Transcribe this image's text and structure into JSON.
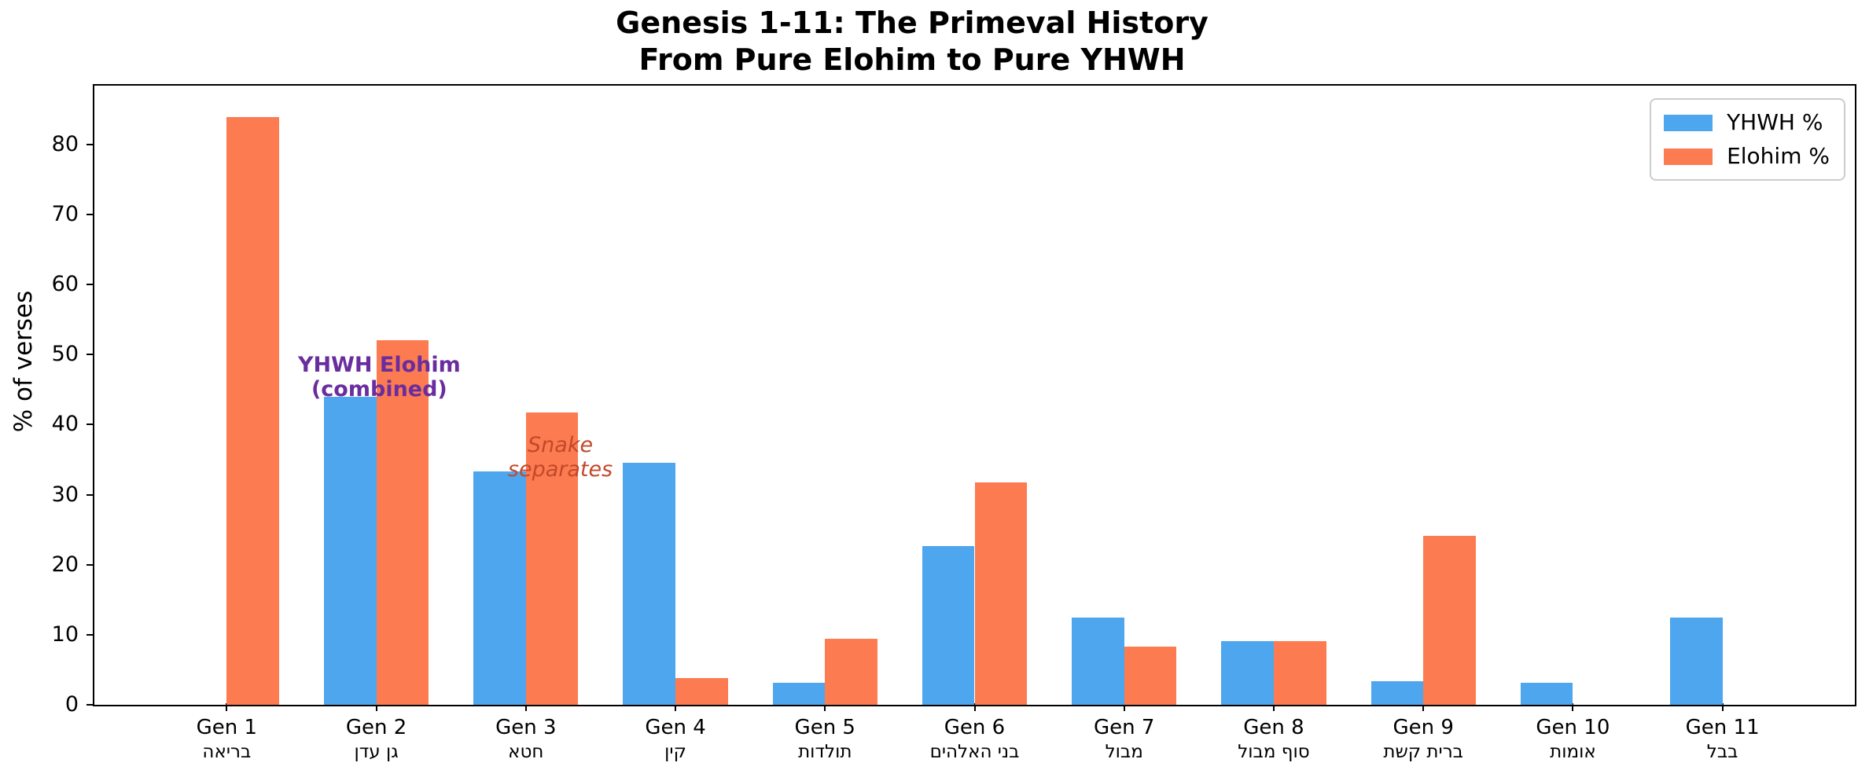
{
  "chart_data": {
    "type": "bar",
    "title": "Genesis 1-11: The Primeval History\nFrom Pure Elohim to Pure YHWH",
    "title_line1": "Genesis 1-11: The Primeval History",
    "title_line2": "From Pure Elohim to Pure YHWH",
    "xlabel": "",
    "ylabel": "% of verses",
    "ylim": [
      0,
      88.4
    ],
    "yticks": [
      0,
      10,
      20,
      30,
      40,
      50,
      60,
      70,
      80
    ],
    "grid": false,
    "legend_position": "upper right",
    "categories": [
      "Gen 1",
      "Gen 2",
      "Gen 3",
      "Gen 4",
      "Gen 5",
      "Gen 6",
      "Gen 7",
      "Gen 8",
      "Gen 9",
      "Gen 10",
      "Gen 11"
    ],
    "categories_hebrew": [
      "בריאה",
      "גן עדן",
      "חטא",
      "קין",
      "תולדות",
      "בני האלהים",
      "מבול",
      "סוף מבול",
      "ברית קשת",
      "אומות",
      "בבל"
    ],
    "series": [
      {
        "name": "YHWH %",
        "color": "#4DA6EE",
        "values": [
          0,
          44.0,
          33.3,
          34.6,
          3.1,
          22.7,
          12.5,
          9.1,
          3.4,
          3.1,
          12.5
        ]
      },
      {
        "name": "Elohim %",
        "color": "#FC7B51",
        "values": [
          83.9,
          52.0,
          41.7,
          3.8,
          9.4,
          31.8,
          8.3,
          9.1,
          24.1,
          0,
          0
        ]
      }
    ],
    "annotations": [
      {
        "lines": [
          "YHWH Elohim",
          "(combined)"
        ],
        "x": 1.02,
        "y": 46.8,
        "color": "#6A2D9E",
        "fontweight": "bold",
        "fontstyle": "normal"
      },
      {
        "lines": [
          "Snake",
          "separates"
        ],
        "x": 2.23,
        "y": 35.3,
        "color": "#C2492B",
        "fontweight": "normal",
        "fontstyle": "italic"
      }
    ]
  }
}
